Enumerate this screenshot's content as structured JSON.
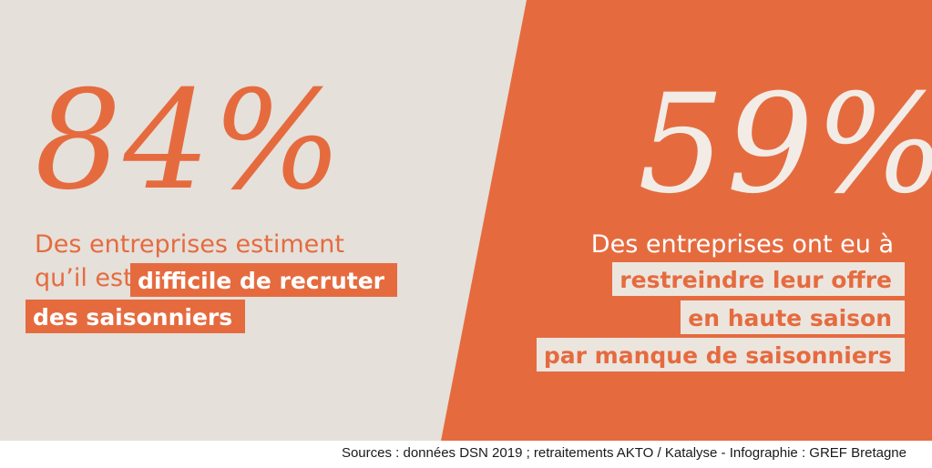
{
  "left": {
    "stat": "84%",
    "line1": "Des entreprises estiment",
    "line2_plain": "qu’il est",
    "highlight_line1": "difficile de recruter",
    "highlight_line2": "des saisonniers"
  },
  "right": {
    "stat": "59%",
    "line1": "Des entreprises ont eu à",
    "highlight_line1": "restreindre leur offre",
    "highlight_line2": "en haute saison",
    "highlight_line3": "par manque de saisonniers"
  },
  "source": "Sources : données DSN 2019 ; retraitements AKTO / Katalyse - Infographie : GREF Bretagne",
  "colors": {
    "orange": "#e56b3f",
    "beige": "#e5e0da",
    "highlight_beige": "#ece5de",
    "white": "#ffffff"
  }
}
